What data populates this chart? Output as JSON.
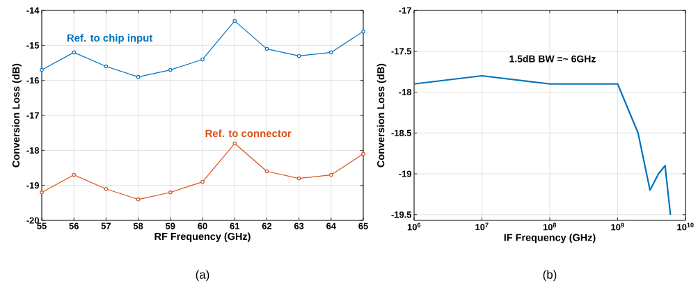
{
  "chart_data": [
    {
      "type": "line",
      "xlabel": "RF Frequency (GHz)",
      "ylabel": "Conversion Loss (dB)",
      "x": [
        55,
        56,
        57,
        58,
        59,
        60,
        61,
        62,
        63,
        64,
        65
      ],
      "series": [
        {
          "name": "Ref. to chip input",
          "color": "#0072bd",
          "values": [
            -15.7,
            -15.2,
            -15.6,
            -15.9,
            -15.7,
            -15.4,
            -14.3,
            -15.1,
            -15.3,
            -15.2,
            -14.6
          ]
        },
        {
          "name": "Ref. to connector",
          "color": "#d95319",
          "values": [
            -19.2,
            -18.7,
            -19.1,
            -19.4,
            -19.2,
            -18.9,
            -17.8,
            -18.6,
            -18.8,
            -18.7,
            -18.1
          ]
        }
      ],
      "xlim": [
        55,
        65
      ],
      "ylim": [
        -20,
        -14
      ],
      "xticks": [
        55,
        56,
        57,
        58,
        59,
        60,
        61,
        62,
        63,
        64,
        65
      ],
      "yticks": [
        -20,
        -19,
        -18,
        -17,
        -16,
        -15,
        -14
      ],
      "grid": true,
      "marker": "circle",
      "legend": false,
      "annotations": [
        "(a)"
      ]
    },
    {
      "type": "line",
      "xlabel": "IF Frequency (GHz)",
      "ylabel": "Conversion Loss (dB)",
      "log": "x",
      "x": [
        1000000,
        10000000,
        100000000,
        1000000000,
        2000000000,
        3000000000,
        4000000000,
        5000000000,
        6000000000
      ],
      "series": [
        {
          "color": "#0072bd",
          "values": [
            -17.9,
            -17.8,
            -17.9,
            -17.9,
            -18.5,
            -19.2,
            -19.0,
            -18.9,
            -19.5
          ]
        }
      ],
      "xlim": [
        1000000,
        10000000000
      ],
      "ylim": [
        -19.57,
        -17
      ],
      "xticks": [
        {
          "value": 1000000,
          "label": "10$^{6}$"
        },
        {
          "value": 10000000,
          "label": "10$^{7}$"
        },
        {
          "value": 100000000,
          "label": "10$^{8}$"
        },
        {
          "value": 1000000000,
          "label": "10$^{9}$"
        },
        {
          "value": 10000000000,
          "label": "10$^{10}$"
        }
      ],
      "yticks": [
        -17,
        -17.5,
        -18,
        -18.5,
        -19,
        -19.5
      ],
      "grid": true,
      "marker": "none",
      "legend": false,
      "annotations": [
        "1.5dB BW =~ 6GHz",
        "(b)"
      ]
    }
  ]
}
